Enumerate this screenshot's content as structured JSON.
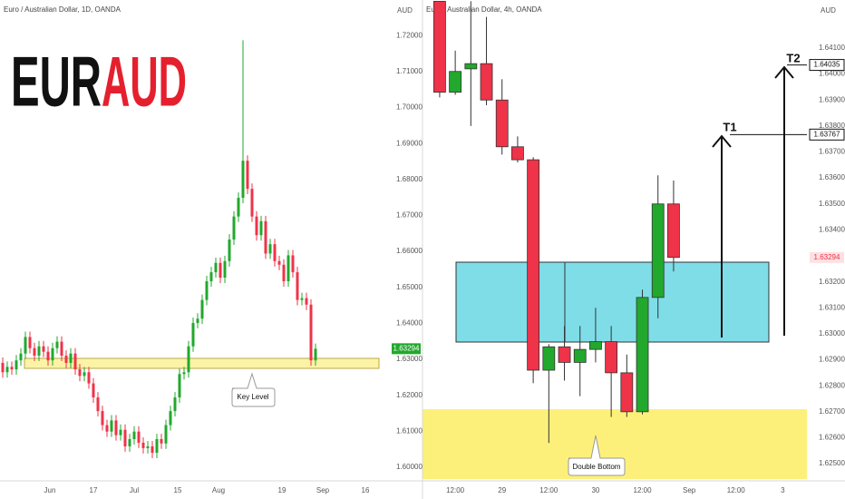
{
  "chart_data": [
    {
      "type": "candlestick",
      "title": "Euro / Australian Dollar, 1D, OANDA",
      "unit": "AUD",
      "logo": [
        "EUR",
        "AUD"
      ],
      "logo_colors": [
        "#111111",
        "#e5202e"
      ],
      "annotations": [
        "Key Level"
      ],
      "up_color": "#22a82d",
      "down_color": "#ef3349",
      "open": [
        1.629,
        1.6264,
        1.6279,
        1.6272,
        1.6297,
        1.6316,
        1.6362,
        1.6331,
        1.631,
        1.6336,
        1.6321,
        1.6297,
        1.6331,
        1.6349,
        1.631,
        1.629,
        1.6316,
        1.6272,
        1.6254,
        1.6264,
        1.6233,
        1.6194,
        1.6156,
        1.6117,
        1.6099,
        1.613,
        1.6089,
        1.6104,
        1.6058,
        1.6078,
        1.6099,
        1.6068,
        1.6053,
        1.6058,
        1.604,
        1.6078,
        1.6066,
        1.6117,
        1.6156,
        1.6194,
        1.6259,
        1.6264,
        1.6336,
        1.6401,
        1.6413,
        1.6465,
        1.6517,
        1.6542,
        1.6568,
        1.6527,
        1.6573,
        1.6633,
        1.6697,
        1.6749,
        1.6852,
        1.6774,
        1.6697,
        1.6645,
        1.6684,
        1.6594,
        1.662,
        1.6573,
        1.6563,
        1.6517,
        1.6589,
        1.6542,
        1.6465,
        1.647,
        1.6452,
        1.6297
      ],
      "high": [
        1.6305,
        1.6294,
        1.6294,
        1.6312,
        1.6331,
        1.6377,
        1.6377,
        1.6346,
        1.6351,
        1.6351,
        1.6336,
        1.6346,
        1.6364,
        1.6364,
        1.6325,
        1.6331,
        1.6331,
        1.6287,
        1.6279,
        1.6279,
        1.6248,
        1.6209,
        1.6171,
        1.6132,
        1.6145,
        1.6145,
        1.6119,
        1.6119,
        1.6093,
        1.6114,
        1.6114,
        1.6083,
        1.6073,
        1.6073,
        1.6093,
        1.6093,
        1.6132,
        1.6171,
        1.6209,
        1.6274,
        1.6279,
        1.6351,
        1.6416,
        1.6428,
        1.648,
        1.6532,
        1.6557,
        1.6583,
        1.6583,
        1.6588,
        1.6648,
        1.6712,
        1.6764,
        1.7187,
        1.6867,
        1.6789,
        1.6712,
        1.6699,
        1.6699,
        1.6635,
        1.6635,
        1.6588,
        1.6578,
        1.6604,
        1.6604,
        1.6557,
        1.6485,
        1.6485,
        1.6467,
        1.6344
      ],
      "low": [
        1.6249,
        1.6249,
        1.6257,
        1.6257,
        1.6282,
        1.6301,
        1.6316,
        1.6295,
        1.6295,
        1.6306,
        1.6282,
        1.6282,
        1.6316,
        1.6295,
        1.6275,
        1.6275,
        1.6257,
        1.6239,
        1.6239,
        1.6218,
        1.6179,
        1.6141,
        1.6102,
        1.6084,
        1.6084,
        1.6074,
        1.6074,
        1.6043,
        1.6043,
        1.6063,
        1.6053,
        1.6038,
        1.6038,
        1.6025,
        1.6025,
        1.6051,
        1.6051,
        1.6102,
        1.6141,
        1.6179,
        1.6244,
        1.6249,
        1.6321,
        1.6386,
        1.6398,
        1.645,
        1.6502,
        1.6527,
        1.6512,
        1.6512,
        1.6558,
        1.6618,
        1.6682,
        1.6734,
        1.6759,
        1.6682,
        1.663,
        1.663,
        1.6579,
        1.6579,
        1.6558,
        1.6548,
        1.6502,
        1.6502,
        1.6527,
        1.645,
        1.645,
        1.6437,
        1.6282,
        1.6282
      ],
      "close": [
        1.6264,
        1.6279,
        1.6272,
        1.6297,
        1.6316,
        1.6362,
        1.6331,
        1.631,
        1.6336,
        1.6321,
        1.6297,
        1.6331,
        1.6349,
        1.631,
        1.629,
        1.6316,
        1.6272,
        1.6254,
        1.6264,
        1.6233,
        1.6194,
        1.6156,
        1.6117,
        1.6099,
        1.613,
        1.6089,
        1.6104,
        1.6058,
        1.6078,
        1.6099,
        1.6068,
        1.6053,
        1.6058,
        1.604,
        1.6078,
        1.6066,
        1.6117,
        1.6156,
        1.6194,
        1.6259,
        1.6264,
        1.6336,
        1.6401,
        1.6413,
        1.6465,
        1.6517,
        1.6542,
        1.6568,
        1.6527,
        1.6573,
        1.6633,
        1.6697,
        1.6749,
        1.6852,
        1.6774,
        1.6697,
        1.6645,
        1.6684,
        1.6594,
        1.662,
        1.6573,
        1.6563,
        1.6517,
        1.6589,
        1.6542,
        1.6465,
        1.647,
        1.6452,
        1.6297,
        1.63294
      ],
      "xlim": [
        -0.6,
        85.8
      ],
      "xticks": [
        {
          "value": 10.4,
          "label": "Jun"
        },
        {
          "value": 20,
          "label": "17"
        },
        {
          "value": 29,
          "label": "Jul"
        },
        {
          "value": 38.6,
          "label": "15"
        },
        {
          "value": 47.6,
          "label": "Aug"
        },
        {
          "value": 61.6,
          "label": "19"
        },
        {
          "value": 70.6,
          "label": "Sep"
        },
        {
          "value": 80,
          "label": "16"
        }
      ],
      "ylim": [
        1.5962,
        1.7299
      ],
      "yticks": [
        {
          "value": 1.72,
          "label": "1.72000"
        },
        {
          "value": 1.71,
          "label": "1.71000"
        },
        {
          "value": 1.7,
          "label": "1.70000"
        },
        {
          "value": 1.69,
          "label": "1.69000"
        },
        {
          "value": 1.68,
          "label": "1.68000"
        },
        {
          "value": 1.67,
          "label": "1.67000"
        },
        {
          "value": 1.66,
          "label": "1.66000"
        },
        {
          "value": 1.65,
          "label": "1.65000"
        },
        {
          "value": 1.64,
          "label": "1.64000"
        },
        {
          "value": 1.63,
          "label": "1.63000"
        },
        {
          "value": 1.62,
          "label": "1.62000"
        },
        {
          "value": 1.61,
          "label": "1.61000"
        },
        {
          "value": 1.6,
          "label": "1.60000"
        }
      ],
      "last_price": 1.63294
    },
    {
      "type": "candlestick",
      "title": "Euro / Australian Dollar, 4h, OANDA",
      "unit": "AUD",
      "annotations": [
        "Double Bottom",
        "T1",
        "T2"
      ],
      "up_color": "#22a82d",
      "down_color": "#ef3349",
      "open": [
        1.6428,
        1.6393,
        1.6402,
        1.6404,
        1.639,
        1.6372,
        1.6367,
        1.6286,
        1.6295,
        1.6289,
        1.6294,
        1.6297,
        1.6285,
        1.627,
        1.6314,
        1.635
      ],
      "high": [
        1.6428,
        1.6409,
        1.6428,
        1.6422,
        1.6398,
        1.6376,
        1.6368,
        1.6296,
        1.6303,
        1.6303,
        1.631,
        1.6303,
        1.6292,
        1.6317,
        1.6361,
        1.6359
      ],
      "low": [
        1.6391,
        1.6392,
        1.638,
        1.6388,
        1.6369,
        1.6366,
        1.6281,
        1.6258,
        1.6282,
        1.6276,
        1.6289,
        1.6268,
        1.6268,
        1.6269,
        1.6306,
        1.6324
      ],
      "close": [
        1.6393,
        1.6401,
        1.6404,
        1.639,
        1.6372,
        1.6367,
        1.6286,
        1.6295,
        1.6289,
        1.6294,
        1.6297,
        1.6285,
        1.627,
        1.6314,
        1.635,
        1.63294
      ],
      "xlim": [
        -1.1,
        23.55
      ],
      "xticks": [
        {
          "value": 1,
          "label": "12:00"
        },
        {
          "value": 4,
          "label": "29"
        },
        {
          "value": 7,
          "label": "12:00"
        },
        {
          "value": 10,
          "label": "30"
        },
        {
          "value": 13,
          "label": "12:00"
        },
        {
          "value": 16,
          "label": "Sep"
        },
        {
          "value": 19,
          "label": "12:00"
        },
        {
          "value": 22,
          "label": "3"
        }
      ],
      "ylim": [
        1.62434,
        1.64285
      ],
      "yticks": [
        {
          "value": 1.641,
          "label": "1.64100"
        },
        {
          "value": 1.64,
          "label": "1.64000"
        },
        {
          "value": 1.639,
          "label": "1.63900"
        },
        {
          "value": 1.638,
          "label": "1.63800"
        },
        {
          "value": 1.637,
          "label": "1.63700"
        },
        {
          "value": 1.636,
          "label": "1.63600"
        },
        {
          "value": 1.635,
          "label": "1.63500"
        },
        {
          "value": 1.634,
          "label": "1.63400"
        },
        {
          "value": 1.632,
          "label": "1.63200"
        },
        {
          "value": 1.631,
          "label": "1.63100"
        },
        {
          "value": 1.63,
          "label": "1.63000"
        },
        {
          "value": 1.629,
          "label": "1.62900"
        },
        {
          "value": 1.628,
          "label": "1.62800"
        },
        {
          "value": 1.627,
          "label": "1.62700"
        },
        {
          "value": 1.626,
          "label": "1.62600"
        },
        {
          "value": 1.625,
          "label": "1.62500"
        }
      ],
      "targets": [
        1.64035,
        1.63767
      ],
      "last_price": 1.63294
    }
  ]
}
